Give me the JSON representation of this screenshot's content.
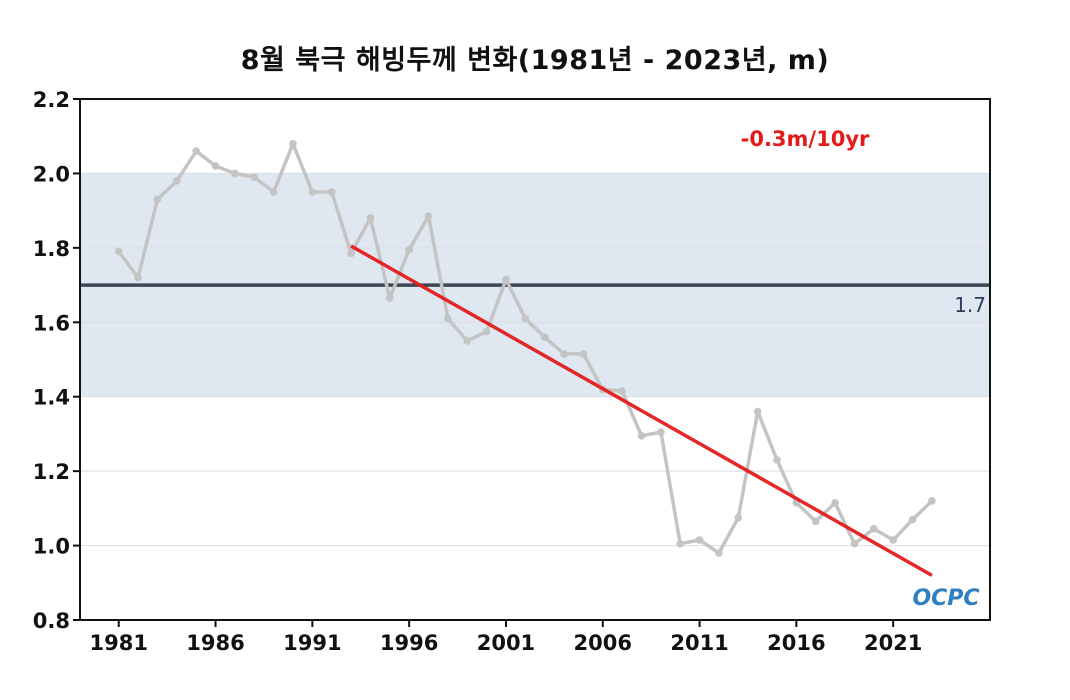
{
  "chart_data": {
    "type": "line",
    "title": "8월 북극 해빙두께 변화(1981년 - 2023년, m)",
    "xlabel": "",
    "ylabel": "",
    "ylim": [
      0.8,
      2.2
    ],
    "xlim": [
      1979,
      2026
    ],
    "x_ticks": [
      1981,
      1986,
      1991,
      1996,
      2001,
      2006,
      2011,
      2016,
      2021
    ],
    "y_ticks": [
      "0.8",
      "1.0",
      "1.2",
      "1.4",
      "1.6",
      "1.8",
      "2.0",
      "2.2"
    ],
    "grid": true,
    "shaded_band": {
      "from": 1.4,
      "to": 2.0,
      "color": "#dfe7f1"
    },
    "reference_line": {
      "value": 1.7,
      "label": "1.7",
      "color": "#3d4654"
    },
    "series": [
      {
        "name": "해빙두께",
        "color": "#c4c4c4",
        "x": [
          1981,
          1982,
          1983,
          1984,
          1985,
          1986,
          1987,
          1988,
          1989,
          1990,
          1991,
          1992,
          1993,
          1994,
          1995,
          1996,
          1997,
          1998,
          1999,
          2000,
          2001,
          2002,
          2003,
          2004,
          2005,
          2006,
          2007,
          2008,
          2009,
          2010,
          2011,
          2012,
          2013,
          2014,
          2015,
          2016,
          2017,
          2018,
          2019,
          2020,
          2021,
          2022,
          2023
        ],
        "values": [
          1.79,
          1.72,
          1.93,
          1.98,
          2.06,
          2.02,
          2.0,
          1.99,
          1.95,
          2.08,
          1.95,
          1.95,
          1.785,
          1.88,
          1.665,
          1.795,
          1.885,
          1.61,
          1.55,
          1.575,
          1.715,
          1.61,
          1.56,
          1.515,
          1.515,
          1.42,
          1.415,
          1.295,
          1.305,
          1.005,
          1.015,
          0.98,
          1.075,
          1.36,
          1.23,
          1.115,
          1.065,
          1.115,
          1.005,
          1.045,
          1.015,
          1.07,
          1.12
        ]
      }
    ],
    "trend": {
      "label": "-0.3m/10yr",
      "color": "#e31b1b",
      "x_start": 1993,
      "y_start": 1.805,
      "x_end": 2023,
      "y_end": 0.92
    },
    "logo": "OCPC"
  }
}
